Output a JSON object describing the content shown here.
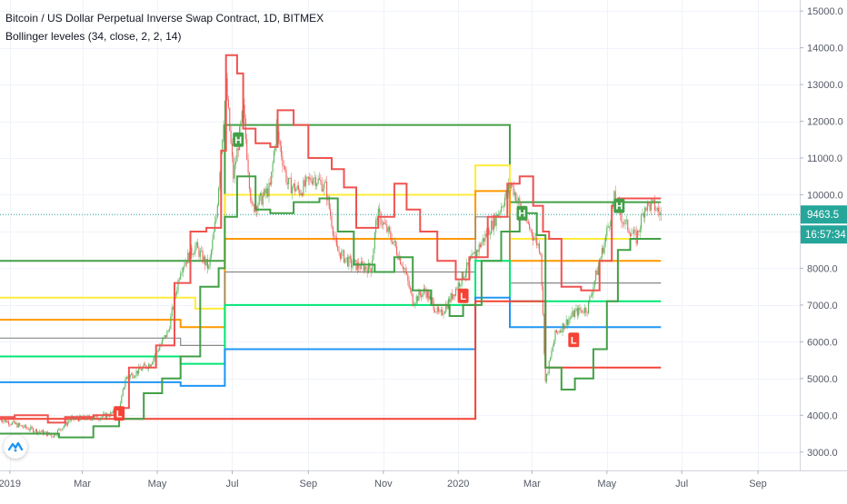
{
  "header": {
    "title": "Bitcoin / US Dollar Perpetual Inverse Swap Contract, 1D, BITMEX",
    "indicator": "Bollinger leveles (34, close, 2, 2, 14)"
  },
  "price_tag": {
    "value": "9463.5",
    "color": "#26a69a"
  },
  "countdown": {
    "value": "16:57:34",
    "color": "#26a69a"
  },
  "logo": {
    "icon": "tradingview-logo-icon"
  },
  "colors": {
    "up": "#26a69a",
    "down": "#ef5350",
    "upper_band": "#ef5350",
    "lower_band": "#43a047",
    "green": "#43a047",
    "yellow": "#ffeb3b",
    "orange": "#ff9800",
    "gray": "#888888",
    "teal": "#00e676",
    "blue": "#2196f3",
    "red": "#f44336"
  },
  "chart_data": {
    "type": "candlestick",
    "title": "Bitcoin / US Dollar Perpetual Inverse Swap Contract, 1D, BITMEX",
    "x_ticks": [
      "2019",
      "Mar",
      "May",
      "Jul",
      "Sep",
      "Nov",
      "2020",
      "Mar",
      "May",
      "Jul",
      "Sep"
    ],
    "y_ticks": [
      3000,
      4000,
      5000,
      6000,
      7000,
      8000,
      9000,
      10000,
      11000,
      12000,
      13000,
      14000,
      15000
    ],
    "y_tick_labels": [
      "3000.0",
      "4000.0",
      "5000.0",
      "6000.0",
      "7000.0",
      "8000.0",
      "9000.0",
      "10000.0",
      "11000.0",
      "12000.0",
      "13000.0",
      "14000.0",
      "15000.0"
    ],
    "ylim": [
      2500,
      15300
    ],
    "x_range": [
      "2018-12-24",
      "2020-10-05"
    ],
    "last_price": 9463.5,
    "grid": true,
    "price_path": [
      [
        "2018-12-24",
        3900
      ],
      [
        "2019-01-10",
        3700
      ],
      [
        "2019-02-05",
        3450
      ],
      [
        "2019-02-20",
        3900
      ],
      [
        "2019-03-15",
        3950
      ],
      [
        "2019-03-31",
        4100
      ],
      [
        "2019-04-05",
        5000
      ],
      [
        "2019-04-25",
        5400
      ],
      [
        "2019-05-10",
        6300
      ],
      [
        "2019-05-20",
        8000
      ],
      [
        "2019-06-01",
        8600
      ],
      [
        "2019-06-12",
        8000
      ],
      [
        "2019-06-18",
        9400
      ],
      [
        "2019-06-26",
        13000
      ],
      [
        "2019-07-02",
        10500
      ],
      [
        "2019-07-10",
        12300
      ],
      [
        "2019-07-17",
        9600
      ],
      [
        "2019-07-25",
        9900
      ],
      [
        "2019-08-01",
        10200
      ],
      [
        "2019-08-06",
        11800
      ],
      [
        "2019-08-15",
        10300
      ],
      [
        "2019-08-25",
        10100
      ],
      [
        "2019-09-05",
        10500
      ],
      [
        "2019-09-15",
        10200
      ],
      [
        "2019-09-24",
        8500
      ],
      [
        "2019-10-06",
        8100
      ],
      [
        "2019-10-22",
        8000
      ],
      [
        "2019-10-27",
        9500
      ],
      [
        "2019-11-08",
        8800
      ],
      [
        "2019-11-18",
        8000
      ],
      [
        "2019-11-25",
        7100
      ],
      [
        "2019-12-05",
        7400
      ],
      [
        "2019-12-17",
        6700
      ],
      [
        "2019-12-26",
        7200
      ],
      [
        "2020-01-08",
        8000
      ],
      [
        "2020-01-20",
        8700
      ],
      [
        "2020-02-01",
        9400
      ],
      [
        "2020-02-13",
        10300
      ],
      [
        "2020-02-25",
        9300
      ],
      [
        "2020-03-08",
        8500
      ],
      [
        "2020-03-12",
        4900
      ],
      [
        "2020-03-20",
        6200
      ],
      [
        "2020-04-05",
        6800
      ],
      [
        "2020-04-15",
        6900
      ],
      [
        "2020-04-29",
        8700
      ],
      [
        "2020-05-07",
        9900
      ],
      [
        "2020-05-14",
        9300
      ],
      [
        "2020-05-25",
        8800
      ],
      [
        "2020-06-01",
        9700
      ],
      [
        "2020-06-08",
        9700
      ],
      [
        "2020-06-14",
        9463.5
      ]
    ],
    "upper_band": [
      [
        "2018-12-24",
        3950
      ],
      [
        "2019-01-05",
        4000
      ],
      [
        "2019-02-01",
        3800
      ],
      [
        "2019-02-15",
        3950
      ],
      [
        "2019-03-10",
        4000
      ],
      [
        "2019-04-01",
        4200
      ],
      [
        "2019-04-08",
        5300
      ],
      [
        "2019-04-30",
        5900
      ],
      [
        "2019-05-15",
        7600
      ],
      [
        "2019-05-28",
        9000
      ],
      [
        "2019-06-10",
        9100
      ],
      [
        "2019-06-22",
        11200
      ],
      [
        "2019-06-26",
        13800
      ],
      [
        "2019-07-05",
        13300
      ],
      [
        "2019-07-10",
        11800
      ],
      [
        "2019-07-20",
        11400
      ],
      [
        "2019-08-01",
        11300
      ],
      [
        "2019-08-07",
        12300
      ],
      [
        "2019-08-20",
        11900
      ],
      [
        "2019-09-01",
        11000
      ],
      [
        "2019-09-20",
        10700
      ],
      [
        "2019-09-30",
        10200
      ],
      [
        "2019-10-10",
        9100
      ],
      [
        "2019-10-28",
        9400
      ],
      [
        "2019-11-10",
        10300
      ],
      [
        "2019-11-20",
        9600
      ],
      [
        "2019-12-01",
        9000
      ],
      [
        "2019-12-15",
        8200
      ],
      [
        "2019-12-30",
        7700
      ],
      [
        "2020-01-10",
        8300
      ],
      [
        "2020-01-25",
        9400
      ],
      [
        "2020-02-10",
        10300
      ],
      [
        "2020-02-20",
        10500
      ],
      [
        "2020-03-02",
        9700
      ],
      [
        "2020-03-10",
        9000
      ],
      [
        "2020-03-15",
        8800
      ],
      [
        "2020-03-25",
        7500
      ],
      [
        "2020-04-10",
        7400
      ],
      [
        "2020-04-25",
        8200
      ],
      [
        "2020-05-05",
        9700
      ],
      [
        "2020-05-10",
        9900
      ],
      [
        "2020-06-14",
        9900
      ]
    ],
    "lower_band": [
      [
        "2018-12-24",
        3500
      ],
      [
        "2019-01-20",
        3500
      ],
      [
        "2019-02-10",
        3400
      ],
      [
        "2019-03-10",
        3700
      ],
      [
        "2019-03-31",
        3900
      ],
      [
        "2019-04-20",
        4600
      ],
      [
        "2019-05-05",
        5000
      ],
      [
        "2019-05-20",
        5600
      ],
      [
        "2019-06-05",
        7500
      ],
      [
        "2019-06-20",
        8000
      ],
      [
        "2019-06-25",
        9400
      ],
      [
        "2019-07-05",
        10500
      ],
      [
        "2019-07-20",
        9600
      ],
      [
        "2019-08-01",
        9500
      ],
      [
        "2019-08-20",
        9800
      ],
      [
        "2019-09-10",
        9900
      ],
      [
        "2019-09-25",
        9000
      ],
      [
        "2019-10-08",
        8100
      ],
      [
        "2019-10-25",
        7900
      ],
      [
        "2019-11-10",
        8300
      ],
      [
        "2019-11-25",
        7400
      ],
      [
        "2019-12-10",
        7000
      ],
      [
        "2019-12-25",
        6700
      ],
      [
        "2020-01-05",
        7000
      ],
      [
        "2020-01-20",
        8200
      ],
      [
        "2020-02-05",
        9000
      ],
      [
        "2020-02-20",
        9500
      ],
      [
        "2020-03-05",
        8900
      ],
      [
        "2020-03-12",
        5300
      ],
      [
        "2020-03-25",
        4700
      ],
      [
        "2020-04-05",
        5000
      ],
      [
        "2020-04-20",
        5800
      ],
      [
        "2020-05-01",
        7100
      ],
      [
        "2020-05-10",
        8500
      ],
      [
        "2020-05-20",
        8800
      ],
      [
        "2020-06-14",
        8800
      ]
    ],
    "levels": [
      {
        "color": "green",
        "segments": [
          [
            "2018-12-24",
            "2019-06-25",
            8200
          ],
          [
            "2019-06-25",
            "2020-02-12",
            11900
          ],
          [
            "2020-02-12",
            "2020-05-04",
            9800
          ],
          [
            "2020-05-04",
            "2020-06-14",
            9800
          ]
        ]
      },
      {
        "color": "yellow",
        "segments": [
          [
            "2018-12-24",
            "2019-06-01",
            7200
          ],
          [
            "2019-06-01",
            "2019-06-25",
            6900
          ],
          [
            "2019-06-25",
            "2020-01-15",
            10000
          ],
          [
            "2020-01-15",
            "2020-02-12",
            10800
          ],
          [
            "2020-02-12",
            "2020-06-14",
            8800
          ]
        ]
      },
      {
        "color": "orange",
        "segments": [
          [
            "2018-12-24",
            "2019-05-20",
            6600
          ],
          [
            "2019-05-20",
            "2019-06-25",
            6400
          ],
          [
            "2019-06-25",
            "2020-01-15",
            8800
          ],
          [
            "2020-01-15",
            "2020-02-12",
            10100
          ],
          [
            "2020-02-12",
            "2020-06-14",
            8200
          ]
        ]
      },
      {
        "color": "gray",
        "segments": [
          [
            "2018-12-24",
            "2019-05-20",
            6100
          ],
          [
            "2019-05-20",
            "2019-06-25",
            5900
          ],
          [
            "2019-06-25",
            "2020-01-15",
            7900
          ],
          [
            "2020-01-15",
            "2020-02-12",
            9400
          ],
          [
            "2020-02-12",
            "2020-06-14",
            7600
          ]
        ]
      },
      {
        "color": "teal",
        "segments": [
          [
            "2018-12-24",
            "2019-05-20",
            5600
          ],
          [
            "2019-05-20",
            "2019-06-25",
            5400
          ],
          [
            "2019-06-25",
            "2020-01-15",
            7000
          ],
          [
            "2020-01-15",
            "2020-02-12",
            8200
          ],
          [
            "2020-02-12",
            "2020-06-14",
            7100
          ]
        ]
      },
      {
        "color": "blue",
        "segments": [
          [
            "2018-12-24",
            "2019-05-20",
            4900
          ],
          [
            "2019-05-20",
            "2019-06-25",
            4800
          ],
          [
            "2019-06-25",
            "2020-01-15",
            5800
          ],
          [
            "2020-01-15",
            "2020-02-12",
            7200
          ],
          [
            "2020-02-12",
            "2020-06-14",
            6400
          ]
        ]
      },
      {
        "color": "red",
        "segments": [
          [
            "2018-12-24",
            "2019-03-31",
            3900
          ],
          [
            "2019-03-31",
            "2020-01-15",
            3900
          ],
          [
            "2020-01-15",
            "2020-03-12",
            7100
          ],
          [
            "2020-03-12",
            "2020-06-14",
            5300
          ]
        ]
      }
    ],
    "markers": [
      {
        "label": "L",
        "date": "2019-03-31",
        "price": 4050,
        "color": "red"
      },
      {
        "label": "H",
        "date": "2019-07-06",
        "price": 11500,
        "color": "green"
      },
      {
        "label": "L",
        "date": "2020-01-05",
        "price": 7250,
        "color": "red"
      },
      {
        "label": "H",
        "date": "2020-02-22",
        "price": 9500,
        "color": "green"
      },
      {
        "label": "L",
        "date": "2020-04-04",
        "price": 6050,
        "color": "red"
      },
      {
        "label": "H",
        "date": "2020-05-11",
        "price": 9700,
        "color": "green"
      }
    ]
  }
}
